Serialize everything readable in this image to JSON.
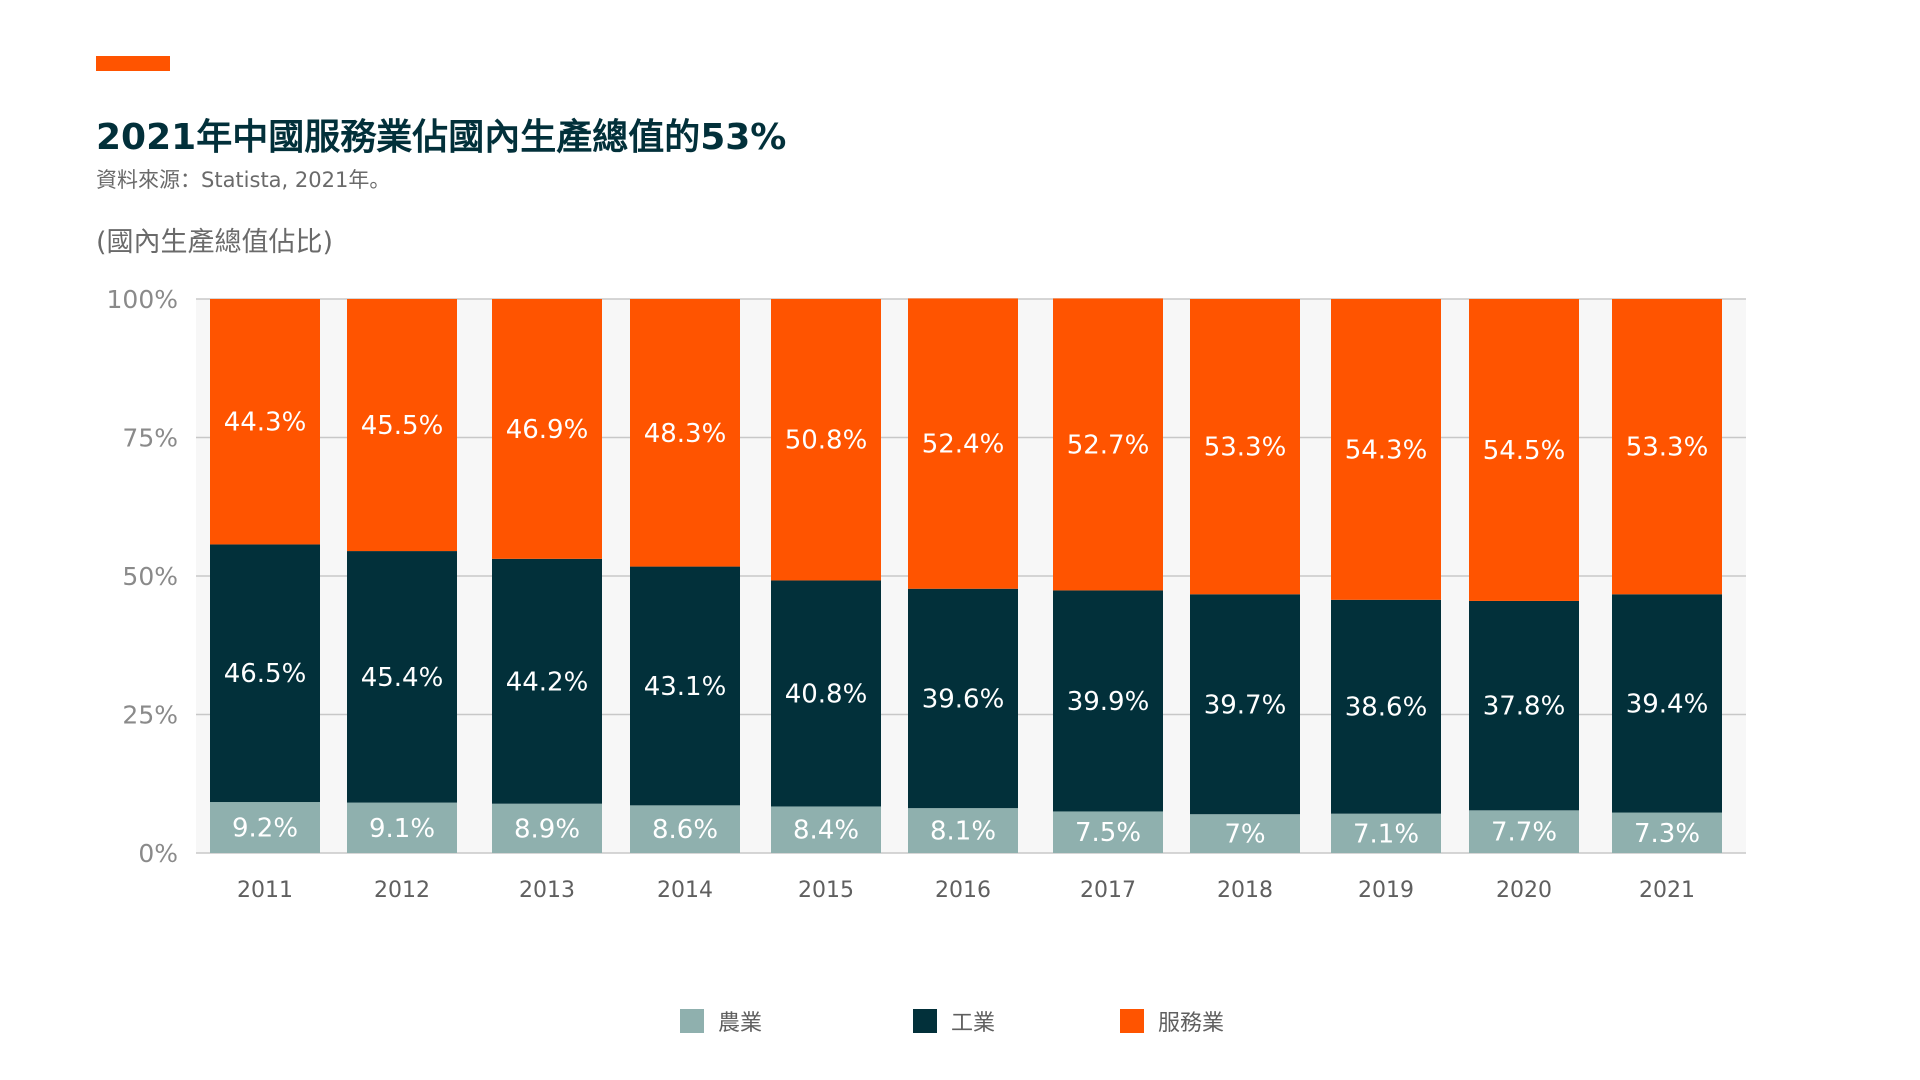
{
  "header": {
    "title": "2021年中國服務業佔國內生產總值的53%",
    "source": "資料來源：Statista, 2021年。",
    "y_unit": "(國內生產總值佔比)"
  },
  "colors": {
    "accent": "#ff5400",
    "agriculture": "#8fb0ae",
    "industry": "#02303a",
    "services": "#ff5400",
    "plot_background": "#f7f7f7",
    "gridline": "#c8c8c8"
  },
  "legend": [
    {
      "key": "agriculture",
      "label": "農業"
    },
    {
      "key": "industry",
      "label": "工業"
    },
    {
      "key": "services",
      "label": "服務業"
    }
  ],
  "chart_data": {
    "type": "bar",
    "stacked": true,
    "title": "2021年中國服務業佔國內生產總值的53%",
    "subtitle": "資料來源：Statista, 2021年。",
    "ylabel": "(國內生產總值佔比)",
    "xlabel": "",
    "ylim": [
      0,
      100
    ],
    "y_ticks": [
      "0%",
      "25%",
      "50%",
      "75%",
      "100%"
    ],
    "y_tick_values": [
      0,
      25,
      50,
      75,
      100
    ],
    "grid": true,
    "legend_position": "bottom",
    "categories": [
      "2011",
      "2012",
      "2013",
      "2014",
      "2015",
      "2016",
      "2017",
      "2018",
      "2019",
      "2020",
      "2021"
    ],
    "series": [
      {
        "name": "農業",
        "key": "agriculture",
        "values": [
          9.2,
          9.1,
          8.9,
          8.6,
          8.4,
          8.1,
          7.5,
          7,
          7.1,
          7.7,
          7.3
        ],
        "labels": [
          "9.2%",
          "9.1%",
          "8.9%",
          "8.6%",
          "8.4%",
          "8.1%",
          "7.5%",
          "7%",
          "7.1%",
          "7.7%",
          "7.3%"
        ]
      },
      {
        "name": "工業",
        "key": "industry",
        "values": [
          46.5,
          45.4,
          44.2,
          43.1,
          40.8,
          39.6,
          39.9,
          39.7,
          38.6,
          37.8,
          39.4
        ],
        "labels": [
          "46.5%",
          "45.4%",
          "44.2%",
          "43.1%",
          "40.8%",
          "39.6%",
          "39.9%",
          "39.7%",
          "38.6%",
          "37.8%",
          "39.4%"
        ]
      },
      {
        "name": "服務業",
        "key": "services",
        "values": [
          44.3,
          45.5,
          46.9,
          48.3,
          50.8,
          52.4,
          52.7,
          53.3,
          54.3,
          54.5,
          53.3
        ],
        "labels": [
          "44.3%",
          "45.5%",
          "46.9%",
          "48.3%",
          "50.8%",
          "52.4%",
          "52.7%",
          "53.3%",
          "54.3%",
          "54.5%",
          "53.3%"
        ]
      }
    ]
  }
}
